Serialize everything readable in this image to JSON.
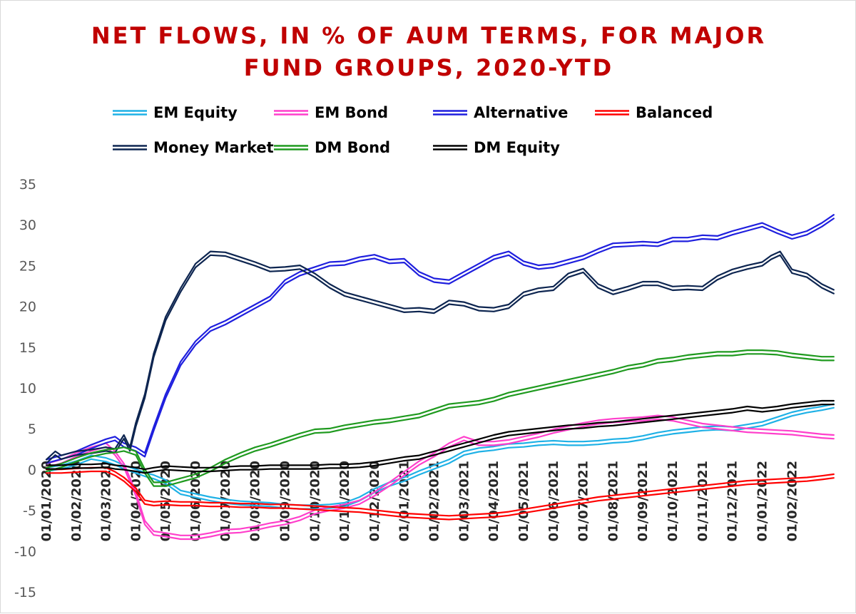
{
  "chart_data": {
    "type": "line",
    "title_lines": [
      "NET FLOWS, IN % OF AUM TERMS, FOR MAJOR",
      "FUND GROUPS, 2020-YTD"
    ],
    "title": "NET FLOWS, IN % OF AUM TERMS, FOR MAJOR FUND GROUPS, 2020-YTD",
    "xlabel": "",
    "ylabel": "",
    "ylim": [
      -15,
      35
    ],
    "yticks": [
      "35",
      "30",
      "25",
      "20",
      "15",
      "10",
      "5",
      "0",
      "-5",
      "-10",
      "-15"
    ],
    "x_tick_labels": [
      "01/01/2020",
      "01/02/2020",
      "01/03/2020",
      "01/04/2020",
      "01/05/2020",
      "01/06/2020",
      "01/07/2020",
      "01/08/2020",
      "01/09/2020",
      "01/10/2020",
      "01/11/2020",
      "01/12/2020",
      "01/01/2021",
      "01/02/2021",
      "01/03/2021",
      "01/04/2021",
      "01/05/2021",
      "01/06/2021",
      "01/07/2021",
      "01/08/2021",
      "01/09/2021",
      "01/10/2021",
      "01/11/2021",
      "01/12/2021",
      "01/01/2022",
      "01/02/2022"
    ],
    "x_range_months": [
      0,
      26.5
    ],
    "grid": false,
    "legend_position": "top",
    "series": [
      {
        "name": "EM Equity",
        "color": "#1fb1e6",
        "x": [
          0,
          0.5,
          1,
          1.5,
          2,
          2.3,
          2.6,
          3,
          3.3,
          3.6,
          4,
          4.5,
          5,
          5.5,
          6,
          6.5,
          7,
          7.5,
          8,
          8.5,
          9,
          9.5,
          10,
          10.5,
          11,
          11.5,
          12,
          12.5,
          13,
          13.5,
          14,
          14.5,
          15,
          15.5,
          16,
          16.5,
          17,
          17.5,
          18,
          18.5,
          19,
          19.5,
          20,
          20.5,
          21,
          21.5,
          22,
          22.5,
          23,
          23.5,
          24,
          24.5,
          25,
          25.5,
          26,
          26.4
        ],
        "y": [
          0,
          0.3,
          0.8,
          1.5,
          1.2,
          0.8,
          0.3,
          -0.2,
          -0.6,
          -0.9,
          -1.5,
          -2.8,
          -3.2,
          -3.6,
          -3.9,
          -4.1,
          -4.2,
          -4.3,
          -4.5,
          -4.6,
          -4.6,
          -4.5,
          -4.3,
          -3.6,
          -2.6,
          -1.8,
          -1.2,
          -0.4,
          0.3,
          1.0,
          2.0,
          2.4,
          2.6,
          2.9,
          3.0,
          3.2,
          3.3,
          3.2,
          3.2,
          3.3,
          3.5,
          3.6,
          3.9,
          4.3,
          4.6,
          4.8,
          5.0,
          5.1,
          5.0,
          5.3,
          5.6,
          6.2,
          6.8,
          7.2,
          7.5,
          7.8
        ]
      },
      {
        "name": "EM Bond",
        "color": "#ff3fcb",
        "x": [
          0,
          0.5,
          1,
          1.5,
          2,
          2.3,
          2.6,
          3,
          3.3,
          3.6,
          4,
          4.5,
          5,
          5.5,
          6,
          6.5,
          7,
          7.5,
          8,
          8.5,
          9,
          9.5,
          10,
          10.5,
          11,
          11.5,
          12,
          12.5,
          13,
          13.5,
          14,
          14.5,
          15,
          15.5,
          16,
          16.5,
          17,
          17.5,
          18,
          18.5,
          19,
          19.5,
          20,
          20.5,
          21,
          21.5,
          22,
          22.5,
          23,
          23.5,
          24,
          24.5,
          25,
          25.5,
          26,
          26.4
        ],
        "y": [
          0.5,
          1.0,
          1.8,
          2.5,
          3.0,
          2.0,
          0.5,
          -3.0,
          -6.5,
          -7.8,
          -8.0,
          -8.3,
          -8.3,
          -8.0,
          -7.6,
          -7.5,
          -7.2,
          -6.8,
          -6.5,
          -6.0,
          -5.2,
          -4.8,
          -4.5,
          -4.0,
          -3.0,
          -1.8,
          -0.5,
          0.8,
          1.8,
          3.0,
          3.8,
          3.2,
          3.2,
          3.4,
          3.8,
          4.2,
          4.7,
          5.1,
          5.5,
          5.8,
          6.0,
          6.1,
          6.2,
          6.4,
          6.2,
          5.8,
          5.4,
          5.2,
          5.0,
          4.8,
          4.7,
          4.6,
          4.5,
          4.3,
          4.1,
          4.0
        ]
      },
      {
        "name": "Alternative",
        "color": "#1f1fde",
        "x": [
          0,
          0.5,
          1,
          1.5,
          2,
          2.3,
          2.6,
          3,
          3.3,
          3.6,
          4,
          4.5,
          5,
          5.5,
          6,
          6.5,
          7,
          7.5,
          8,
          8.5,
          9,
          9.5,
          10,
          10.5,
          11,
          11.5,
          12,
          12.5,
          13,
          13.5,
          14,
          14.5,
          15,
          15.5,
          16,
          16.5,
          17,
          17.5,
          18,
          18.5,
          19,
          19.5,
          20,
          20.5,
          21,
          21.5,
          22,
          22.5,
          23,
          23.5,
          24,
          24.5,
          25,
          25.5,
          26,
          26.4
        ],
        "y": [
          1.0,
          1.5,
          2.0,
          2.8,
          3.5,
          3.8,
          3.0,
          2.5,
          1.8,
          5.0,
          9.0,
          13.0,
          15.5,
          17.2,
          18.0,
          19.0,
          20.0,
          21.0,
          23.0,
          24.0,
          24.6,
          25.2,
          25.3,
          25.8,
          26.1,
          25.5,
          25.6,
          24.0,
          23.2,
          23.0,
          24.0,
          25.0,
          26.0,
          26.5,
          25.3,
          24.8,
          25.0,
          25.5,
          26.0,
          26.8,
          27.5,
          27.6,
          27.7,
          27.6,
          28.2,
          28.2,
          28.5,
          28.4,
          29.0,
          29.5,
          30.0,
          29.2,
          28.5,
          29.0,
          30.0,
          31.0
        ]
      },
      {
        "name": "Balanced",
        "color": "#ff0000",
        "x": [
          0,
          0.5,
          1,
          1.5,
          2,
          2.3,
          2.6,
          3,
          3.3,
          3.6,
          4,
          4.5,
          5,
          5.5,
          6,
          6.5,
          7,
          7.5,
          8,
          8.5,
          9,
          9.5,
          10,
          10.5,
          11,
          11.5,
          12,
          12.5,
          13,
          13.5,
          14,
          14.5,
          15,
          15.5,
          16,
          16.5,
          17,
          17.5,
          18,
          18.5,
          19,
          19.5,
          20,
          20.5,
          21,
          21.5,
          22,
          22.5,
          23,
          23.5,
          24,
          24.5,
          25,
          25.5,
          26,
          26.4
        ],
        "y": [
          -0.2,
          -0.2,
          -0.1,
          0.0,
          0.0,
          -0.5,
          -1.2,
          -2.5,
          -4.0,
          -4.2,
          -4.1,
          -4.2,
          -4.2,
          -4.3,
          -4.3,
          -4.4,
          -4.4,
          -4.5,
          -4.5,
          -4.6,
          -4.7,
          -4.8,
          -4.9,
          -5.0,
          -5.2,
          -5.4,
          -5.6,
          -5.7,
          -5.8,
          -5.9,
          -5.8,
          -5.7,
          -5.6,
          -5.4,
          -5.1,
          -4.8,
          -4.5,
          -4.2,
          -3.9,
          -3.6,
          -3.4,
          -3.2,
          -3.0,
          -2.8,
          -2.6,
          -2.4,
          -2.2,
          -2.0,
          -1.8,
          -1.6,
          -1.5,
          -1.4,
          -1.3,
          -1.2,
          -1.0,
          -0.8
        ]
      },
      {
        "name": "Money Market",
        "color": "#0d2550",
        "x": [
          0,
          0.3,
          0.5,
          1,
          1.5,
          2,
          2.3,
          2.6,
          2.8,
          3,
          3.3,
          3.6,
          4,
          4.5,
          5,
          5.5,
          6,
          6.5,
          7,
          7.5,
          8,
          8.5,
          9,
          9.5,
          10,
          10.5,
          11,
          11.5,
          12,
          12.5,
          13,
          13.5,
          14,
          14.5,
          15,
          15.5,
          16,
          16.5,
          17,
          17.5,
          18,
          18.5,
          19,
          19.5,
          20,
          20.5,
          21,
          21.5,
          22,
          22.5,
          23,
          23.5,
          24,
          24.3,
          24.6,
          25,
          25.5,
          26,
          26.4
        ],
        "y": [
          1.0,
          2.0,
          1.5,
          2.0,
          2.2,
          2.5,
          2.3,
          4.0,
          2.5,
          5.5,
          9.0,
          14.0,
          18.5,
          22.0,
          25.0,
          26.5,
          26.4,
          25.8,
          25.2,
          24.5,
          24.6,
          24.8,
          23.8,
          22.5,
          21.5,
          21.0,
          20.5,
          20.0,
          19.5,
          19.6,
          19.4,
          20.5,
          20.3,
          19.7,
          19.6,
          20.0,
          21.5,
          22.0,
          22.2,
          23.8,
          24.4,
          22.5,
          21.7,
          22.2,
          22.8,
          22.8,
          22.2,
          22.3,
          22.2,
          23.5,
          24.3,
          24.8,
          25.2,
          26.0,
          26.5,
          24.3,
          23.8,
          22.5,
          21.8
        ]
      },
      {
        "name": "DM Bond",
        "color": "#1f9a1f",
        "x": [
          0,
          0.5,
          1,
          1.5,
          2,
          2.3,
          2.6,
          3,
          3.3,
          3.6,
          4,
          4.5,
          5,
          5.5,
          6,
          6.5,
          7,
          7.5,
          8,
          8.5,
          9,
          9.5,
          10,
          10.5,
          11,
          11.5,
          12,
          12.5,
          13,
          13.5,
          14,
          14.5,
          15,
          15.5,
          16,
          16.5,
          17,
          17.5,
          18,
          18.5,
          19,
          19.5,
          20,
          20.5,
          21,
          21.5,
          22,
          22.5,
          23,
          23.5,
          24,
          24.5,
          25,
          25.5,
          26,
          26.4
        ],
        "y": [
          0,
          0.5,
          1.2,
          1.8,
          2.2,
          2.3,
          2.5,
          2.0,
          -0.2,
          -1.8,
          -1.8,
          -1.3,
          -0.8,
          0.0,
          1.0,
          1.8,
          2.5,
          3.0,
          3.6,
          4.2,
          4.7,
          4.8,
          5.2,
          5.5,
          5.8,
          6.0,
          6.3,
          6.6,
          7.2,
          7.8,
          8.0,
          8.2,
          8.6,
          9.2,
          9.6,
          10.0,
          10.4,
          10.8,
          11.2,
          11.6,
          12.0,
          12.5,
          12.8,
          13.3,
          13.5,
          13.8,
          14.0,
          14.2,
          14.2,
          14.4,
          14.4,
          14.3,
          14.0,
          13.8,
          13.6,
          13.6
        ]
      },
      {
        "name": "DM Equity",
        "color": "#000000",
        "x": [
          0,
          0.5,
          1,
          1.5,
          2,
          2.3,
          2.6,
          3,
          3.3,
          3.6,
          4,
          4.5,
          5,
          5.5,
          6,
          6.5,
          7,
          7.5,
          8,
          8.5,
          9,
          9.5,
          10,
          10.5,
          11,
          11.5,
          12,
          12.5,
          13,
          13.5,
          14,
          14.5,
          15,
          15.5,
          16,
          16.5,
          17,
          17.5,
          18,
          18.5,
          19,
          19.5,
          20,
          20.5,
          21,
          21.5,
          22,
          22.5,
          23,
          23.5,
          24,
          24.5,
          25,
          25.5,
          26,
          26.4
        ],
        "y": [
          0.3,
          0.3,
          0.4,
          0.4,
          0.5,
          0.3,
          0.2,
          0.0,
          -0.2,
          0.0,
          0.2,
          0.1,
          0.0,
          0.0,
          0.1,
          0.2,
          0.2,
          0.3,
          0.3,
          0.3,
          0.3,
          0.4,
          0.4,
          0.5,
          0.7,
          1.0,
          1.3,
          1.5,
          2.0,
          2.5,
          3.0,
          3.5,
          4.0,
          4.4,
          4.6,
          4.8,
          5.0,
          5.2,
          5.3,
          5.5,
          5.6,
          5.8,
          6.0,
          6.2,
          6.4,
          6.6,
          6.8,
          7.0,
          7.2,
          7.5,
          7.3,
          7.5,
          7.8,
          8.0,
          8.2,
          8.2
        ]
      }
    ]
  }
}
